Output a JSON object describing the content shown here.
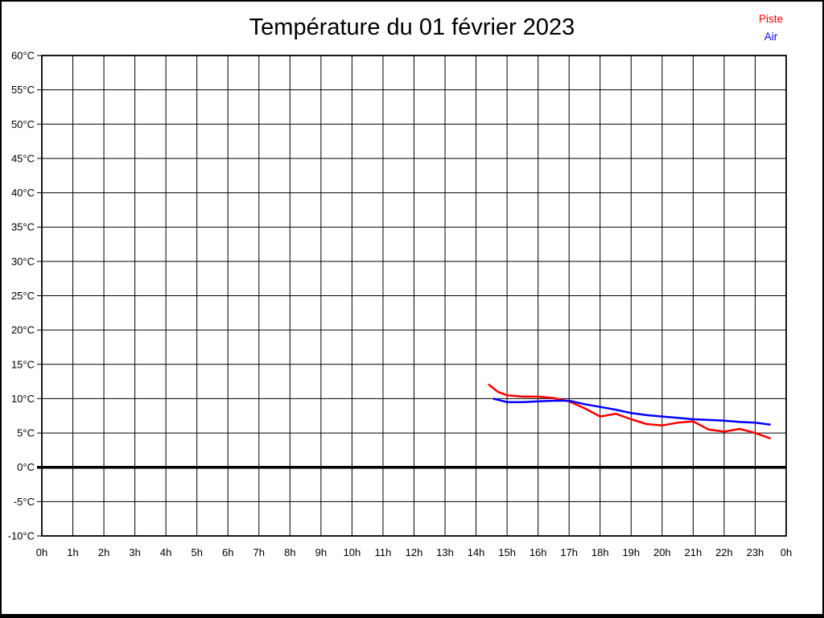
{
  "title": "Température du 01 février 2023",
  "chart_data": {
    "type": "line",
    "title": "Température du 01 février 2023",
    "grid": true,
    "legend_position": "top-right",
    "background": "#ffffff",
    "axis_color": "#000000",
    "x_axis": {
      "min": 0,
      "max": 24,
      "unit": "h",
      "ticks": [
        {
          "hour": 0,
          "label": "0h"
        },
        {
          "hour": 1,
          "label": "1h"
        },
        {
          "hour": 2,
          "label": "2h"
        },
        {
          "hour": 3,
          "label": "3h"
        },
        {
          "hour": 4,
          "label": "4h"
        },
        {
          "hour": 5,
          "label": "5h"
        },
        {
          "hour": 6,
          "label": "6h"
        },
        {
          "hour": 7,
          "label": "7h"
        },
        {
          "hour": 8,
          "label": "8h"
        },
        {
          "hour": 9,
          "label": "9h"
        },
        {
          "hour": 10,
          "label": "10h"
        },
        {
          "hour": 11,
          "label": "11h"
        },
        {
          "hour": 12,
          "label": "12h"
        },
        {
          "hour": 13,
          "label": "13h"
        },
        {
          "hour": 14,
          "label": "14h"
        },
        {
          "hour": 15,
          "label": "15h"
        },
        {
          "hour": 16,
          "label": "16h"
        },
        {
          "hour": 17,
          "label": "17h"
        },
        {
          "hour": 18,
          "label": "18h"
        },
        {
          "hour": 19,
          "label": "19h"
        },
        {
          "hour": 20,
          "label": "20h"
        },
        {
          "hour": 21,
          "label": "21h"
        },
        {
          "hour": 22,
          "label": "22h"
        },
        {
          "hour": 23,
          "label": "23h"
        },
        {
          "hour": 24,
          "label": "0h"
        }
      ]
    },
    "y_axis": {
      "min": -10,
      "max": 60,
      "step": 5,
      "unit": "°C",
      "bold_value": 0,
      "ticks": [
        {
          "value": 60,
          "label": "60°C"
        },
        {
          "value": 55,
          "label": "55°C"
        },
        {
          "value": 50,
          "label": "50°C"
        },
        {
          "value": 45,
          "label": "45°C"
        },
        {
          "value": 40,
          "label": "40°C"
        },
        {
          "value": 35,
          "label": "35°C"
        },
        {
          "value": 30,
          "label": "30°C"
        },
        {
          "value": 25,
          "label": "25°C"
        },
        {
          "value": 20,
          "label": "20°C"
        },
        {
          "value": 15,
          "label": "15°C"
        },
        {
          "value": 10,
          "label": "10°C"
        },
        {
          "value": 5,
          "label": "5°C"
        },
        {
          "value": 0,
          "label": "0°C"
        },
        {
          "value": -5,
          "label": "-5°C"
        },
        {
          "value": -10,
          "label": "-10°C"
        }
      ]
    },
    "series": [
      {
        "name": "Piste",
        "color": "#ff0000",
        "points": [
          [
            14.4,
            12.1
          ],
          [
            14.7,
            11.0
          ],
          [
            15.0,
            10.5
          ],
          [
            15.5,
            10.3
          ],
          [
            16.0,
            10.3
          ],
          [
            16.5,
            10.1
          ],
          [
            17.0,
            9.6
          ],
          [
            17.5,
            8.6
          ],
          [
            18.0,
            7.4
          ],
          [
            18.5,
            7.8
          ],
          [
            19.0,
            7.0
          ],
          [
            19.5,
            6.3
          ],
          [
            20.0,
            6.1
          ],
          [
            20.5,
            6.5
          ],
          [
            21.0,
            6.7
          ],
          [
            21.5,
            5.5
          ],
          [
            22.0,
            5.2
          ],
          [
            22.5,
            5.6
          ],
          [
            23.0,
            5.0
          ],
          [
            23.5,
            4.2
          ]
        ]
      },
      {
        "name": "Air",
        "color": "#0000ff",
        "points": [
          [
            14.55,
            10.0
          ],
          [
            15.0,
            9.5
          ],
          [
            15.5,
            9.5
          ],
          [
            16.0,
            9.6
          ],
          [
            16.5,
            9.7
          ],
          [
            17.0,
            9.7
          ],
          [
            17.5,
            9.2
          ],
          [
            18.0,
            8.8
          ],
          [
            18.5,
            8.4
          ],
          [
            19.0,
            7.9
          ],
          [
            19.5,
            7.6
          ],
          [
            20.0,
            7.4
          ],
          [
            20.5,
            7.2
          ],
          [
            21.0,
            7.0
          ],
          [
            21.5,
            6.9
          ],
          [
            22.0,
            6.8
          ],
          [
            22.5,
            6.6
          ],
          [
            23.0,
            6.5
          ],
          [
            23.5,
            6.2
          ]
        ]
      }
    ]
  }
}
